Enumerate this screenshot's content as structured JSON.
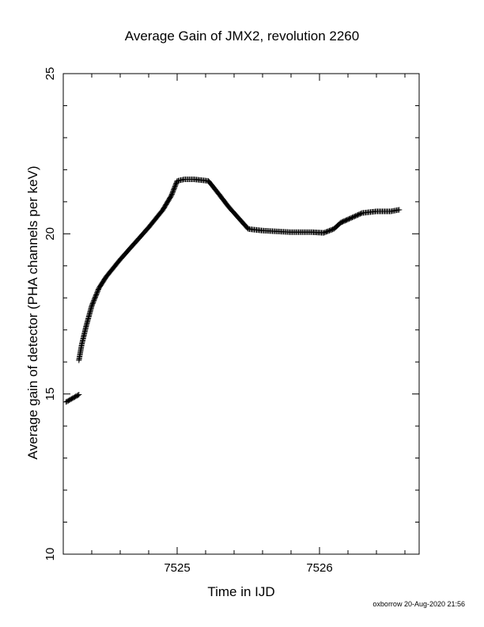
{
  "chart_data": {
    "type": "scatter",
    "title": "Average Gain of JMX2, revolution 2260",
    "xlabel": "Time in IJD",
    "ylabel": "Average gain of detector (PHA channels per keV)",
    "xlim": [
      7524.2,
      7526.7
    ],
    "ylim": [
      10,
      25
    ],
    "xticks_major": [
      7525,
      7526
    ],
    "xtick_labels": [
      "7525",
      "7526"
    ],
    "yticks_major": [
      10,
      15,
      20,
      25
    ],
    "ytick_labels": [
      "10",
      "15",
      "20",
      "25"
    ],
    "grid": false,
    "marker": "plus",
    "color": "#000000",
    "series": [
      {
        "segments": [
          [
            [
              7524.22,
              14.75
            ],
            [
              7524.31,
              14.98
            ]
          ],
          [
            [
              7524.31,
              16.05
            ],
            [
              7524.33,
              16.55
            ],
            [
              7524.36,
              17.1
            ],
            [
              7524.4,
              17.75
            ],
            [
              7524.45,
              18.3
            ],
            [
              7524.5,
              18.65
            ],
            [
              7524.6,
              19.2
            ],
            [
              7524.7,
              19.7
            ],
            [
              7524.8,
              20.2
            ],
            [
              7524.9,
              20.75
            ],
            [
              7524.96,
              21.2
            ],
            [
              7525.0,
              21.65
            ],
            [
              7525.05,
              21.7
            ],
            [
              7525.12,
              21.7
            ],
            [
              7525.22,
              21.65
            ],
            [
              7525.3,
              21.2
            ],
            [
              7525.36,
              20.85
            ],
            [
              7525.42,
              20.55
            ],
            [
              7525.5,
              20.15
            ],
            [
              7525.6,
              20.1
            ],
            [
              7525.8,
              20.05
            ],
            [
              7525.95,
              20.05
            ],
            [
              7526.03,
              20.03
            ],
            [
              7526.1,
              20.15
            ],
            [
              7526.15,
              20.35
            ],
            [
              7526.2,
              20.45
            ],
            [
              7526.3,
              20.65
            ],
            [
              7526.4,
              20.7
            ],
            [
              7526.5,
              20.7
            ],
            [
              7526.56,
              20.75
            ]
          ]
        ]
      }
    ]
  },
  "footer": "oxborrow 20-Aug-2020 21:56"
}
